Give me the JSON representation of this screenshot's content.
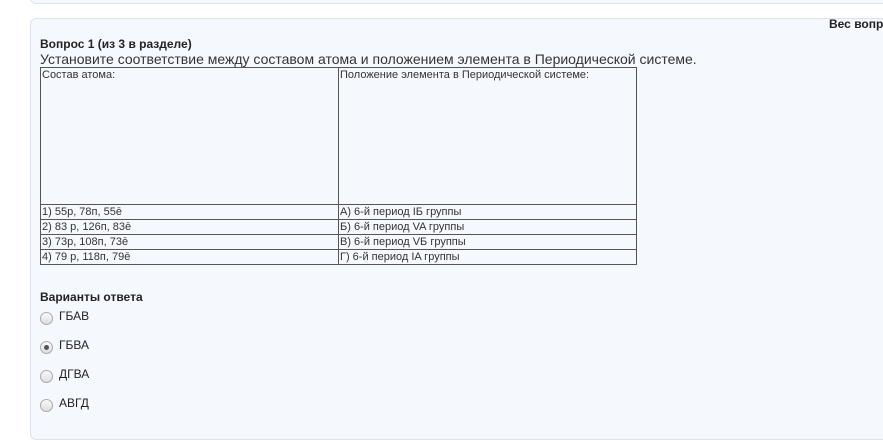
{
  "header": {
    "weight_label": "Вес вопр"
  },
  "question": {
    "title": "Вопрос 1 (из 3 в разделе)",
    "text": "Установите соответствие между составом атома и положением элемента в Периодической системе.",
    "table": {
      "headers": [
        "Состав атома:",
        "Положение элемента в Периодической системе:"
      ],
      "rows": [
        [
          "1) 55р, 78п, 55ē",
          "А) 6-й период IБ группы"
        ],
        [
          "2) 83 р, 126п, 83ē",
          "Б) 6-й период VA группы"
        ],
        [
          "3) 73р, 108п, 73ē",
          "В) 6-й период VБ группы"
        ],
        [
          "4) 79 р, 118п, 79ē",
          "Г) 6-й период IA группы"
        ]
      ]
    }
  },
  "answers": {
    "title": "Варианты ответа",
    "options": [
      {
        "label": "ГБАВ",
        "selected": false
      },
      {
        "label": "ГБВА",
        "selected": true
      },
      {
        "label": "ДГВА",
        "selected": false
      },
      {
        "label": "АВГД",
        "selected": false
      }
    ]
  }
}
